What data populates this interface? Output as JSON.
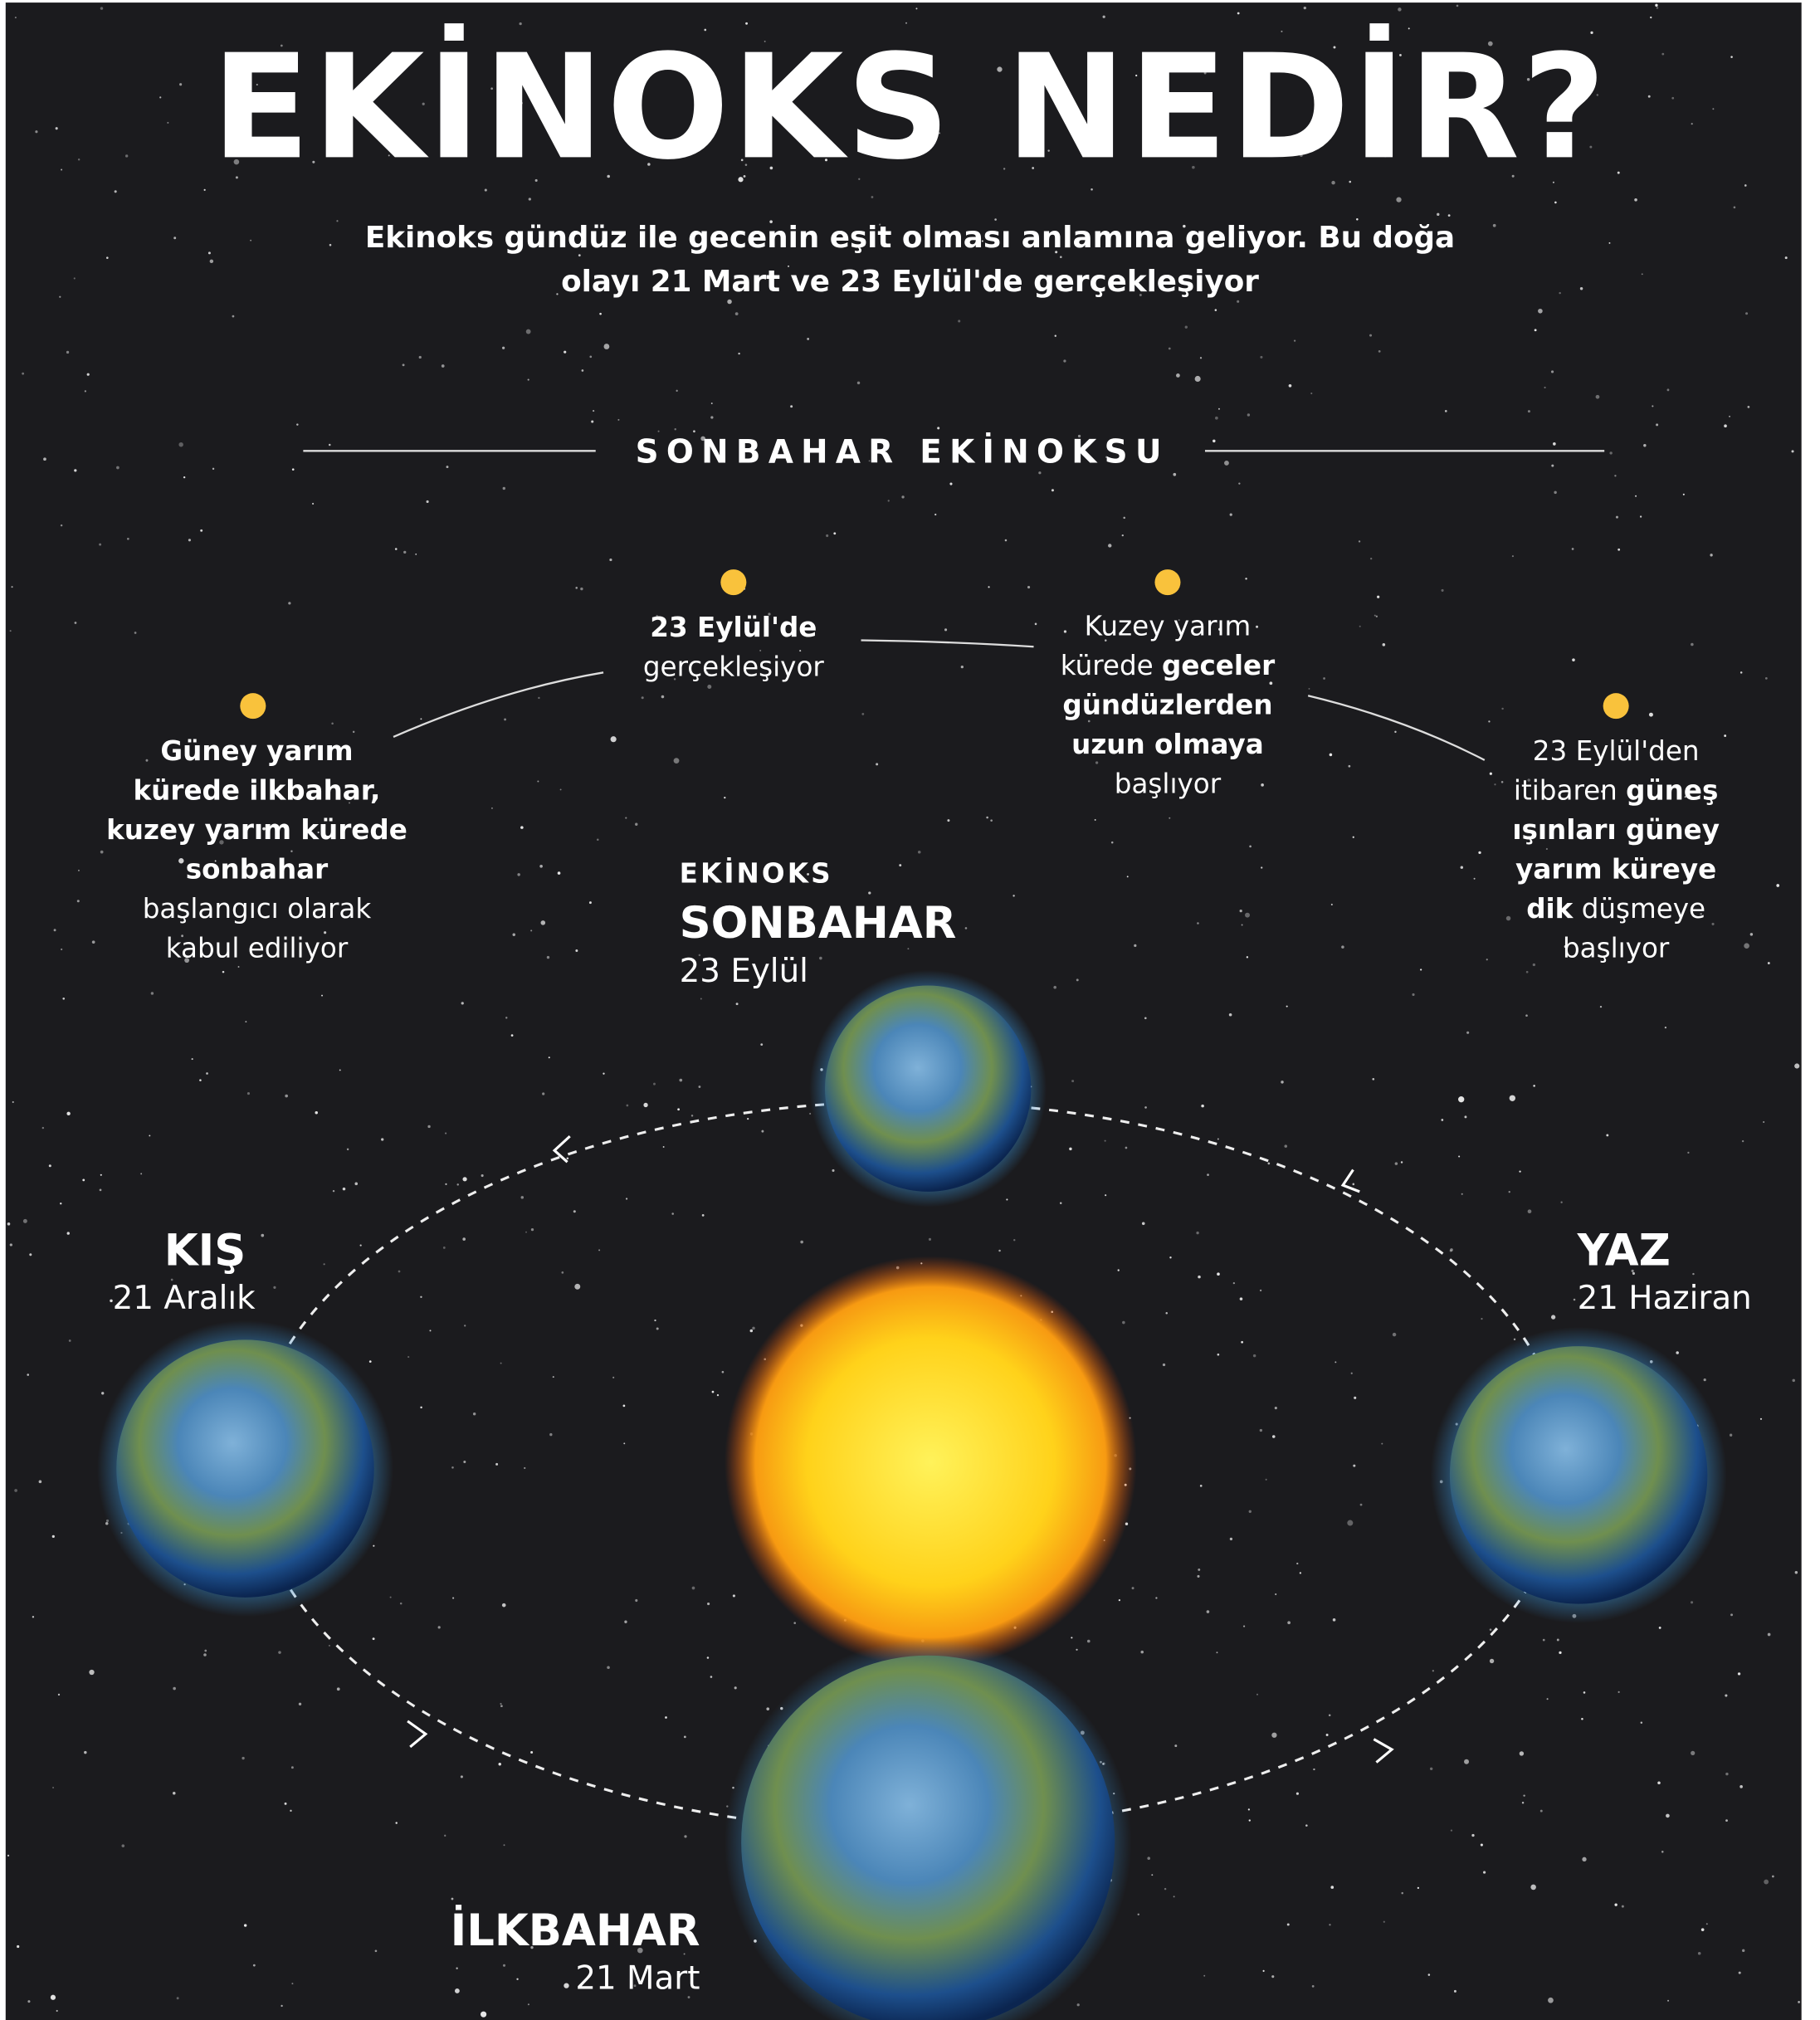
{
  "header": {
    "title": "EKİNOKS NEDİR?",
    "subtitle": [
      "Ekinoks gündüz ile gecenin eşit olması anlamına geliyor. Bu doğa",
      "olayı 21 Mart ve 23 Eylül'de gerçekleşiyor"
    ]
  },
  "section": {
    "heading": "SONBAHAR EKİNOKSU"
  },
  "facts": [
    {
      "lines": [
        [
          {
            "text": "Güney yarım",
            "bold": true
          }
        ],
        [
          {
            "text": "kürede ilkbahar,",
            "bold": true
          }
        ],
        [
          {
            "text": "kuzey yarım kürede",
            "bold": true
          }
        ],
        [
          {
            "text": "sonbahar",
            "bold": true
          }
        ],
        [
          {
            "text": "başlangıcı olarak",
            "bold": false
          }
        ],
        [
          {
            "text": "kabul ediliyor",
            "bold": false
          }
        ]
      ]
    },
    {
      "lines": [
        [
          {
            "text": "23 Eylül'de",
            "bold": true
          }
        ],
        [
          {
            "text": "gerçekleşiyor",
            "bold": false
          }
        ]
      ]
    },
    {
      "lines": [
        [
          {
            "text": "Kuzey yarım",
            "bold": false
          }
        ],
        [
          {
            "text": "kürede ",
            "bold": false
          },
          {
            "text": "geceler",
            "bold": true
          }
        ],
        [
          {
            "text": "gündüzlerden",
            "bold": true
          }
        ],
        [
          {
            "text": "uzun olmaya",
            "bold": true
          }
        ],
        [
          {
            "text": "başlıyor",
            "bold": false
          }
        ]
      ]
    },
    {
      "lines": [
        [
          {
            "text": "23 Eylül'den",
            "bold": false
          }
        ],
        [
          {
            "text": "itibaren ",
            "bold": false
          },
          {
            "text": "güneş",
            "bold": true
          }
        ],
        [
          {
            "text": "ışınları güney",
            "bold": true
          }
        ],
        [
          {
            "text": "yarım küreye",
            "bold": true
          }
        ],
        [
          {
            "text": "dik",
            "bold": true
          },
          {
            "text": " düşmeye",
            "bold": false
          }
        ],
        [
          {
            "text": "başlıyor",
            "bold": false
          }
        ]
      ]
    }
  ],
  "positions": {
    "autumn": {
      "kicker": "EKİNOKS",
      "name": "SONBAHAR",
      "date": "23 Eylül"
    },
    "winter": {
      "name": "KIŞ",
      "date": "21 Aralık"
    },
    "summer": {
      "name": "YAZ",
      "date": "21 Haziran"
    },
    "spring": {
      "name": "İLKBAHAR",
      "date": "21 Mart"
    }
  }
}
